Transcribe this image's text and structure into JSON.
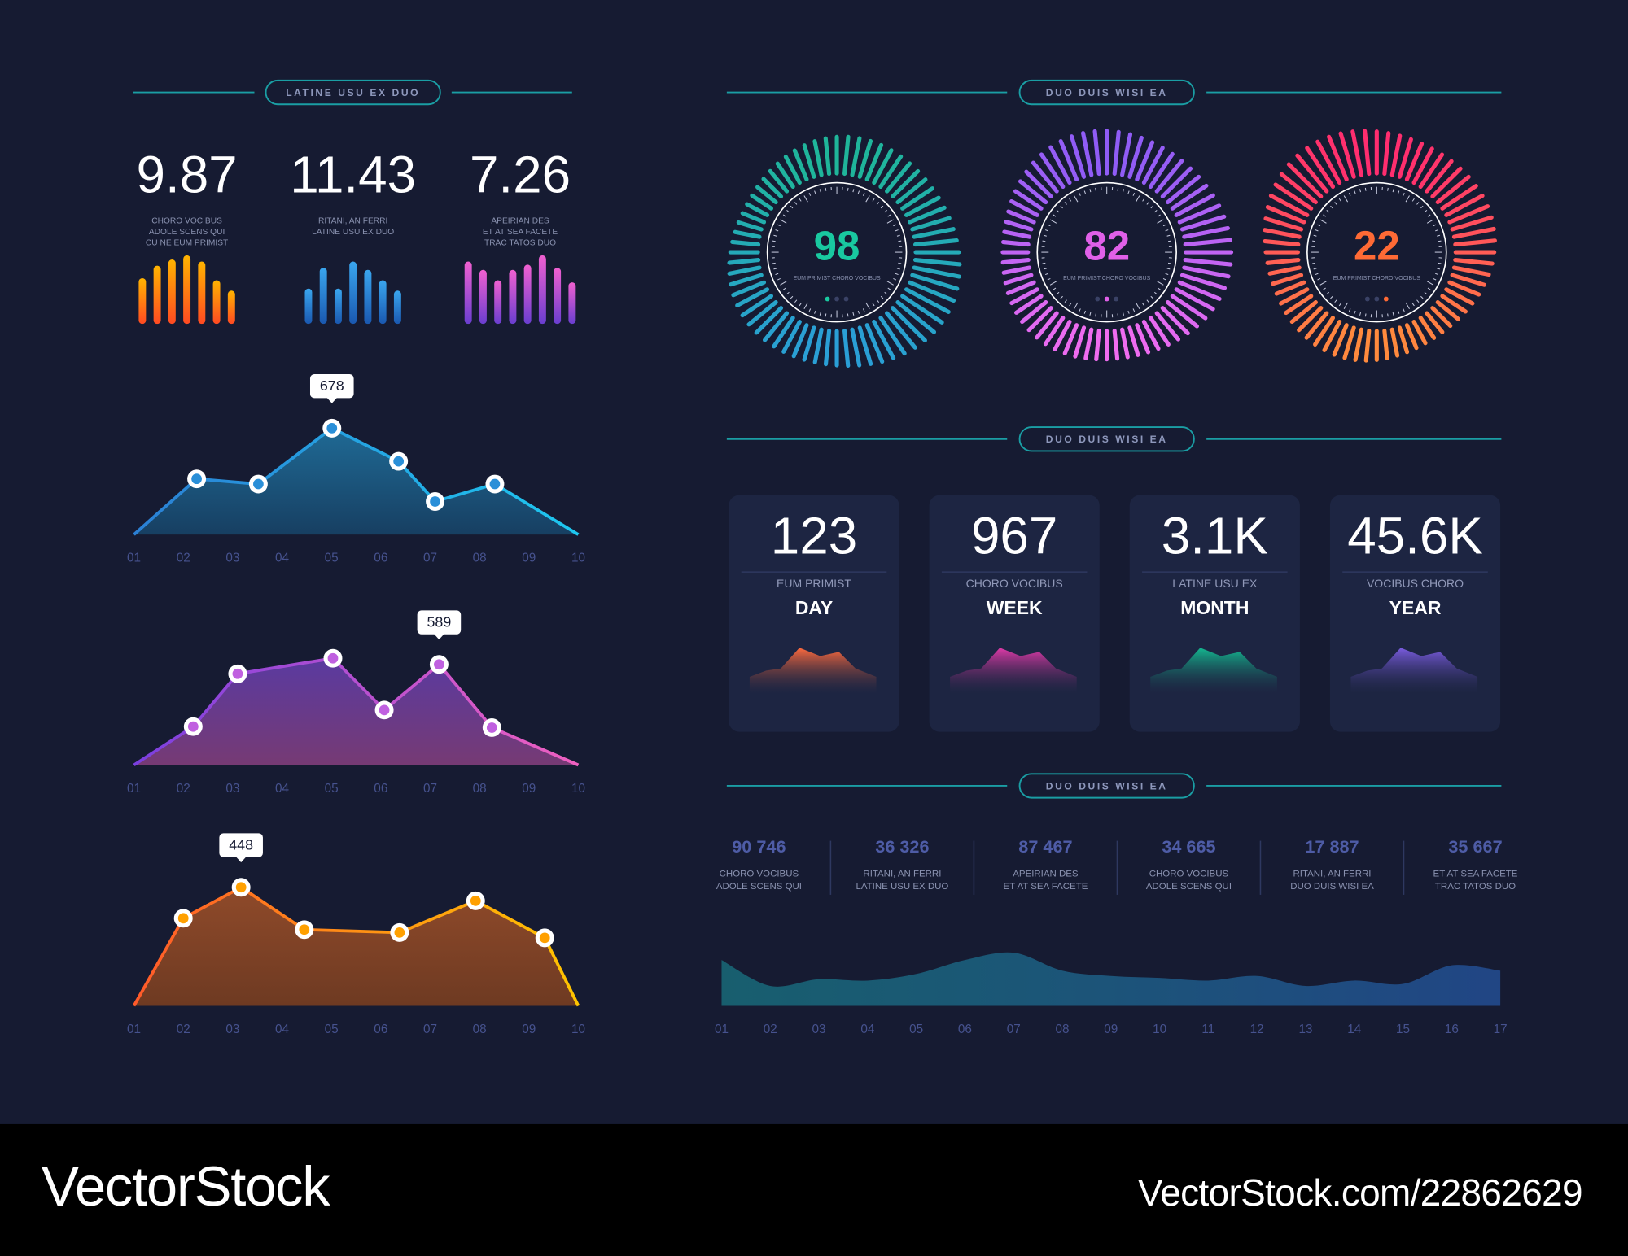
{
  "headers": [
    {
      "title": "LATINE USU EX DUO"
    },
    {
      "title": "DUO DUIS WISI EA"
    },
    {
      "title": "DUO DUIS WISI EA"
    },
    {
      "title": "DUO DUIS WISI EA"
    }
  ],
  "chart_data": [
    {
      "type": "bar",
      "title": "9.87",
      "subtitle": [
        "CHORO VOCIBUS",
        "ADOLE SCENS QUI",
        "CU NE EUM PRIMIST"
      ],
      "values": [
        44,
        56,
        62,
        66,
        60,
        42,
        32
      ],
      "ylim": [
        0,
        70
      ],
      "colors": [
        "#ffb400",
        "#ff4a22"
      ]
    },
    {
      "type": "bar",
      "title": "11.43",
      "subtitle": [
        "RITANI, AN FERRI",
        "LATINE USU EX DUO"
      ],
      "values": [
        34,
        54,
        34,
        60,
        52,
        42,
        32
      ],
      "ylim": [
        0,
        70
      ],
      "colors": [
        "#3aa6ee",
        "#1a58b0"
      ]
    },
    {
      "type": "bar",
      "title": "7.26",
      "subtitle": [
        "APEIRIAN DES",
        "ET AT SEA FACETE",
        "TRAC TATOS DUO"
      ],
      "values": [
        60,
        52,
        42,
        52,
        57,
        66,
        54,
        40
      ],
      "ylim": [
        0,
        70
      ],
      "colors": [
        "#f060d0",
        "#6a3ed0"
      ]
    },
    {
      "type": "area",
      "x": [
        1,
        2.27,
        3.52,
        5.01,
        6.36,
        7.1,
        8.31,
        10
      ],
      "xlim": [
        1,
        10
      ],
      "xticks": [
        {
          "value": 1,
          "label": "01"
        },
        {
          "value": 2,
          "label": "02"
        },
        {
          "value": 3,
          "label": "03"
        },
        {
          "value": 4,
          "label": "04"
        },
        {
          "value": 5,
          "label": "05"
        },
        {
          "value": 6,
          "label": "06"
        },
        {
          "value": 7,
          "label": "07"
        },
        {
          "value": 8,
          "label": "08"
        },
        {
          "value": 9,
          "label": "09"
        },
        {
          "value": 10,
          "label": "10"
        }
      ],
      "ylim": [
        0,
        860
      ],
      "series": [
        {
          "values": [
            0,
            355,
            322,
            678,
            467,
            211,
            322,
            0
          ],
          "colors": [
            "#2b7fd4",
            "#1ec8f0"
          ],
          "area_colors": [
            "#1f6a95",
            "#173f62"
          ],
          "marker_color": "#2a8fd8"
        }
      ],
      "callout": 3
    },
    {
      "type": "area",
      "x": [
        1,
        2.2,
        3.1,
        5.03,
        6.07,
        7.18,
        8.25,
        10
      ],
      "xlim": [
        1,
        10
      ],
      "xticks": [
        {
          "value": 1,
          "label": "01"
        },
        {
          "value": 2,
          "label": "02"
        },
        {
          "value": 3,
          "label": "03"
        },
        {
          "value": 4,
          "label": "04"
        },
        {
          "value": 5,
          "label": "05"
        },
        {
          "value": 6,
          "label": "06"
        },
        {
          "value": 7,
          "label": "07"
        },
        {
          "value": 8,
          "label": "08"
        },
        {
          "value": 9,
          "label": "09"
        },
        {
          "value": 10,
          "label": "10"
        }
      ],
      "ylim": [
        0,
        790
      ],
      "series": [
        {
          "values": [
            0,
            225,
            534,
            625,
            322,
            589,
            219,
            0
          ],
          "colors": [
            "#7a3fe0",
            "#f060c0"
          ],
          "area_colors": [
            "#5a3aa0",
            "#763a74"
          ],
          "marker_color": "#c060e0"
        }
      ],
      "callout": 5
    },
    {
      "type": "area",
      "x": [
        1,
        2.0,
        3.17,
        4.45,
        6.38,
        7.92,
        9.32,
        10
      ],
      "xlim": [
        1,
        10
      ],
      "xticks": [
        {
          "value": 1,
          "label": "01"
        },
        {
          "value": 2,
          "label": "02"
        },
        {
          "value": 3,
          "label": "03"
        },
        {
          "value": 4,
          "label": "04"
        },
        {
          "value": 5,
          "label": "05"
        },
        {
          "value": 6,
          "label": "06"
        },
        {
          "value": 7,
          "label": "07"
        },
        {
          "value": 8,
          "label": "08"
        },
        {
          "value": 9,
          "label": "09"
        },
        {
          "value": 10,
          "label": "10"
        }
      ],
      "ylim": [
        0,
        510
      ],
      "series": [
        {
          "values": [
            0,
            331,
            448,
            288,
            277,
            397,
            257,
            0
          ],
          "colors": [
            "#ff5a2a",
            "#ffc400"
          ],
          "area_colors": [
            "#8f4a2a",
            "#6e3a22"
          ],
          "marker_color": "#ffa000"
        }
      ],
      "callout": 2
    },
    {
      "type": "gauge",
      "value": 98,
      "label": "EUM PRIMIST CHORO VOCIBUS",
      "color": "#19c9a0",
      "colors": [
        "#1fb59a",
        "#2a9fd6"
      ]
    },
    {
      "type": "gauge",
      "value": 82,
      "label": "EUM PRIMIST CHORO VOCIBUS",
      "color": "#e060e8",
      "colors": [
        "#8f5cf6",
        "#f06cf0"
      ]
    },
    {
      "type": "gauge",
      "value": 22,
      "label": "EUM PRIMIST CHORO VOCIBUS",
      "color": "#ff6a35",
      "colors": [
        "#ff2d6f",
        "#ff8a3d"
      ]
    },
    {
      "type": "wave",
      "categories": [
        "01",
        "02",
        "03",
        "04",
        "05",
        "06",
        "07",
        "08",
        "09",
        "10",
        "11",
        "12",
        "13",
        "14",
        "15",
        "16",
        "17"
      ],
      "values": [
        69,
        30,
        40,
        38,
        48,
        69,
        80,
        53,
        45,
        42,
        38,
        45,
        30,
        38,
        33,
        61,
        53
      ],
      "ylim": [
        0,
        100
      ],
      "colors": [
        "#1ab0b8",
        "#2a68c8"
      ]
    }
  ],
  "cards": [
    {
      "value": "123",
      "label": "EUM PRIMIST",
      "period": "DAY",
      "color": "#ff6a3d"
    },
    {
      "value": "967",
      "label": "CHORO VOCIBUS",
      "period": "WEEK",
      "color": "#e03aa8"
    },
    {
      "value": "3.1K",
      "label": "LATINE USU EX",
      "period": "MONTH",
      "color": "#14b890"
    },
    {
      "value": "45.6K",
      "label": "VOCIBUS CHORO",
      "period": "YEAR",
      "color": "#7a5ce0"
    }
  ],
  "stats": [
    {
      "value": "90 746",
      "lines": [
        "CHORO VOCIBUS",
        "ADOLE SCENS QUI"
      ]
    },
    {
      "value": "36 326",
      "lines": [
        "RITANI, AN FERRI",
        "LATINE USU EX DUO"
      ]
    },
    {
      "value": "87 467",
      "lines": [
        "APEIRIAN DES",
        "ET AT SEA FACETE"
      ]
    },
    {
      "value": "34 665",
      "lines": [
        "CHORO VOCIBUS",
        "ADOLE SCENS QUI"
      ]
    },
    {
      "value": "17 887",
      "lines": [
        "RITANI, AN FERRI",
        "DUO DUIS WISI EA"
      ]
    },
    {
      "value": "35 667",
      "lines": [
        "ET AT SEA FACETE",
        "TRAC TATOS DUO"
      ]
    }
  ],
  "footer": {
    "brand": "VectorStock",
    "url": "VectorStock.com/22862629"
  }
}
